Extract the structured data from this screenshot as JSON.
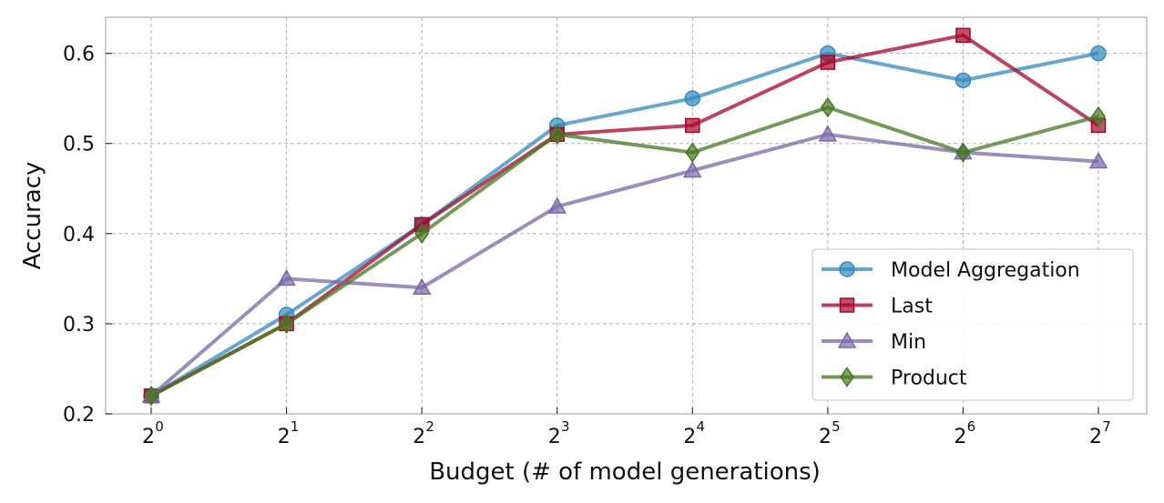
{
  "chart_data": {
    "type": "line",
    "title": "",
    "xlabel": "Budget (# of model generations)",
    "ylabel": "Accuracy",
    "x_tick_base": "2",
    "x_exponents": [
      0,
      1,
      2,
      3,
      4,
      5,
      6,
      7
    ],
    "x_tick_exponent_labels": [
      "0",
      "1",
      "2",
      "3",
      "4",
      "5",
      "6",
      "7"
    ],
    "ylim": [
      0.2,
      0.64
    ],
    "y_ticks": [
      0.2,
      0.3,
      0.4,
      0.5,
      0.6
    ],
    "y_tick_labels": [
      "0.2",
      "0.3",
      "0.4",
      "0.5",
      "0.6"
    ],
    "grid": true,
    "legend_position": "bottom-right",
    "series": [
      {
        "name": "Model Aggregation",
        "color": "#348abd",
        "marker": "circle",
        "values": [
          0.22,
          0.31,
          0.41,
          0.52,
          0.55,
          0.6,
          0.57,
          0.6
        ]
      },
      {
        "name": "Last",
        "color": "#a60628",
        "marker": "square",
        "values": [
          0.22,
          0.3,
          0.41,
          0.51,
          0.52,
          0.59,
          0.62,
          0.52
        ]
      },
      {
        "name": "Min",
        "color": "#7a68a6",
        "marker": "triangle",
        "values": [
          0.22,
          0.35,
          0.34,
          0.43,
          0.47,
          0.51,
          0.49,
          0.48
        ]
      },
      {
        "name": "Product",
        "color": "#467821",
        "marker": "diamond",
        "values": [
          0.22,
          0.3,
          0.4,
          0.51,
          0.49,
          0.54,
          0.49,
          0.53
        ]
      }
    ]
  }
}
